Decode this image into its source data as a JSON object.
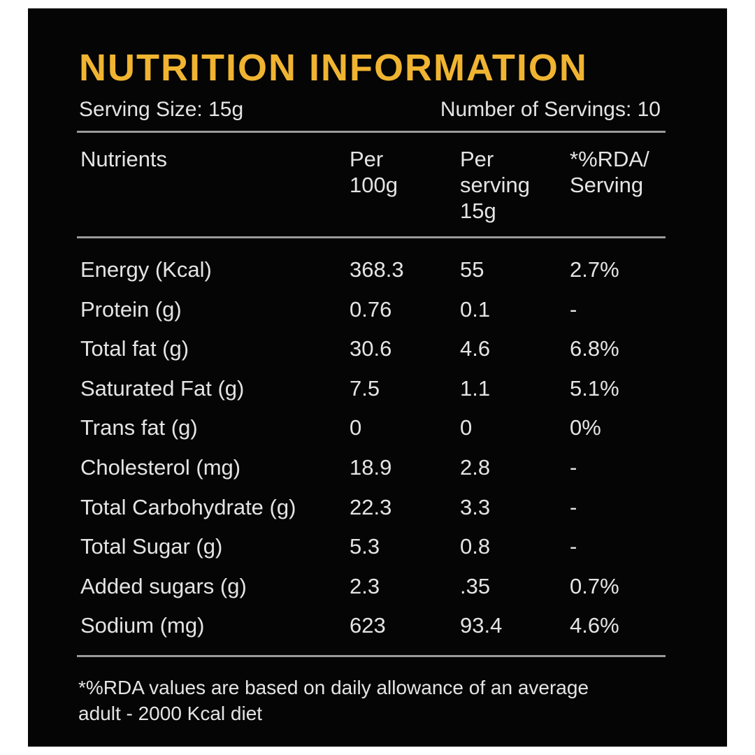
{
  "title": "NUTRITION INFORMATION",
  "serving_size": "Serving Size: 15g",
  "servings": "Number of Servings: 10",
  "table": {
    "header": [
      [
        "Nutrients"
      ],
      [
        "Per",
        "100g"
      ],
      [
        "Per",
        "serving",
        "15g"
      ],
      [
        "*%RDA/",
        "Serving"
      ]
    ],
    "rows": [
      [
        "Energy (Kcal)",
        "368.3",
        "55",
        "2.7%"
      ],
      [
        "Protein (g)",
        "0.76",
        "0.1",
        "-"
      ],
      [
        "Total fat (g)",
        "30.6",
        "4.6",
        "6.8%"
      ],
      [
        "Saturated Fat (g)",
        "7.5",
        "1.1",
        "5.1%"
      ],
      [
        "Trans fat (g)",
        "0",
        "0",
        "0%"
      ],
      [
        "Cholesterol (mg)",
        "18.9",
        "2.8",
        "-"
      ],
      [
        "Total Carbohydrate (g)",
        "22.3",
        "3.3",
        "-"
      ],
      [
        "Total Sugar (g)",
        "5.3",
        "0.8",
        "-"
      ],
      [
        "Added sugars (g)",
        "2.3",
        ".35",
        "0.7%"
      ],
      [
        "Sodium (mg)",
        "623",
        "93.4",
        "4.6%"
      ]
    ]
  },
  "footnote": [
    "*%RDA values are based on daily allowance of an average",
    "adult - 2000 Kcal diet"
  ]
}
